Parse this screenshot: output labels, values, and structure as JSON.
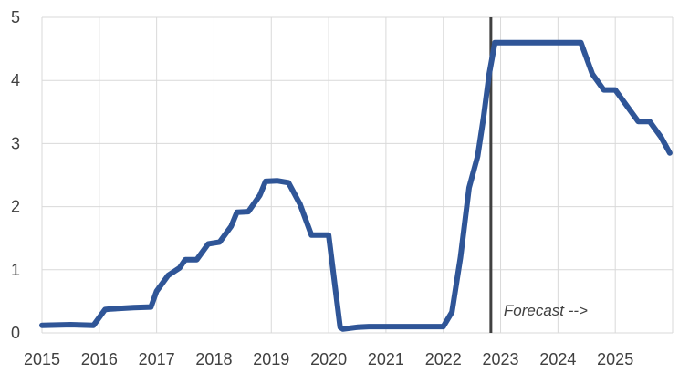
{
  "chart_data": {
    "type": "line",
    "title": "",
    "xlabel": "",
    "ylabel": "",
    "xlim": [
      2015,
      2026
    ],
    "ylim": [
      0,
      5
    ],
    "x_ticks": [
      "2015",
      "2016",
      "2017",
      "2018",
      "2019",
      "2020",
      "2021",
      "2022",
      "2023",
      "2024",
      "2025"
    ],
    "y_ticks": [
      "0",
      "1",
      "2",
      "3",
      "4",
      "5"
    ],
    "grid": "both",
    "legend": "none",
    "colors": {
      "series": "#2f5597",
      "grid": "#d9d9d9",
      "forecast_line": "#404040"
    },
    "forecast_x": 2022.83,
    "annotation": "Forecast -->",
    "series": [
      {
        "x": [
          2015.0,
          2015.5,
          2015.9,
          2016.1,
          2016.2,
          2016.6,
          2016.9,
          2017.0,
          2017.2,
          2017.4,
          2017.5,
          2017.7,
          2017.9,
          2018.1,
          2018.3,
          2018.4,
          2018.6,
          2018.8,
          2018.9,
          2019.1,
          2019.3,
          2019.5,
          2019.7,
          2019.8,
          2020.0,
          2020.2,
          2020.25,
          2020.5,
          2020.7,
          2021.0,
          2021.5,
          2022.0,
          2022.15,
          2022.3,
          2022.45,
          2022.6,
          2022.7,
          2022.8,
          2022.9,
          2023.0,
          2023.5,
          2024.0,
          2024.4,
          2024.5,
          2024.6,
          2024.8,
          2025.0,
          2025.2,
          2025.4,
          2025.6,
          2025.8,
          2025.95
        ],
        "values": [
          0.12,
          0.13,
          0.12,
          0.37,
          0.38,
          0.4,
          0.41,
          0.66,
          0.91,
          1.03,
          1.16,
          1.16,
          1.41,
          1.44,
          1.69,
          1.91,
          1.92,
          2.18,
          2.4,
          2.41,
          2.38,
          2.04,
          1.55,
          1.55,
          1.55,
          0.09,
          0.06,
          0.09,
          0.1,
          0.1,
          0.1,
          0.1,
          0.33,
          1.2,
          2.3,
          2.8,
          3.4,
          4.1,
          4.6,
          4.6,
          4.6,
          4.6,
          4.6,
          4.35,
          4.1,
          3.85,
          3.85,
          3.6,
          3.35,
          3.35,
          3.1,
          2.85
        ]
      }
    ]
  }
}
